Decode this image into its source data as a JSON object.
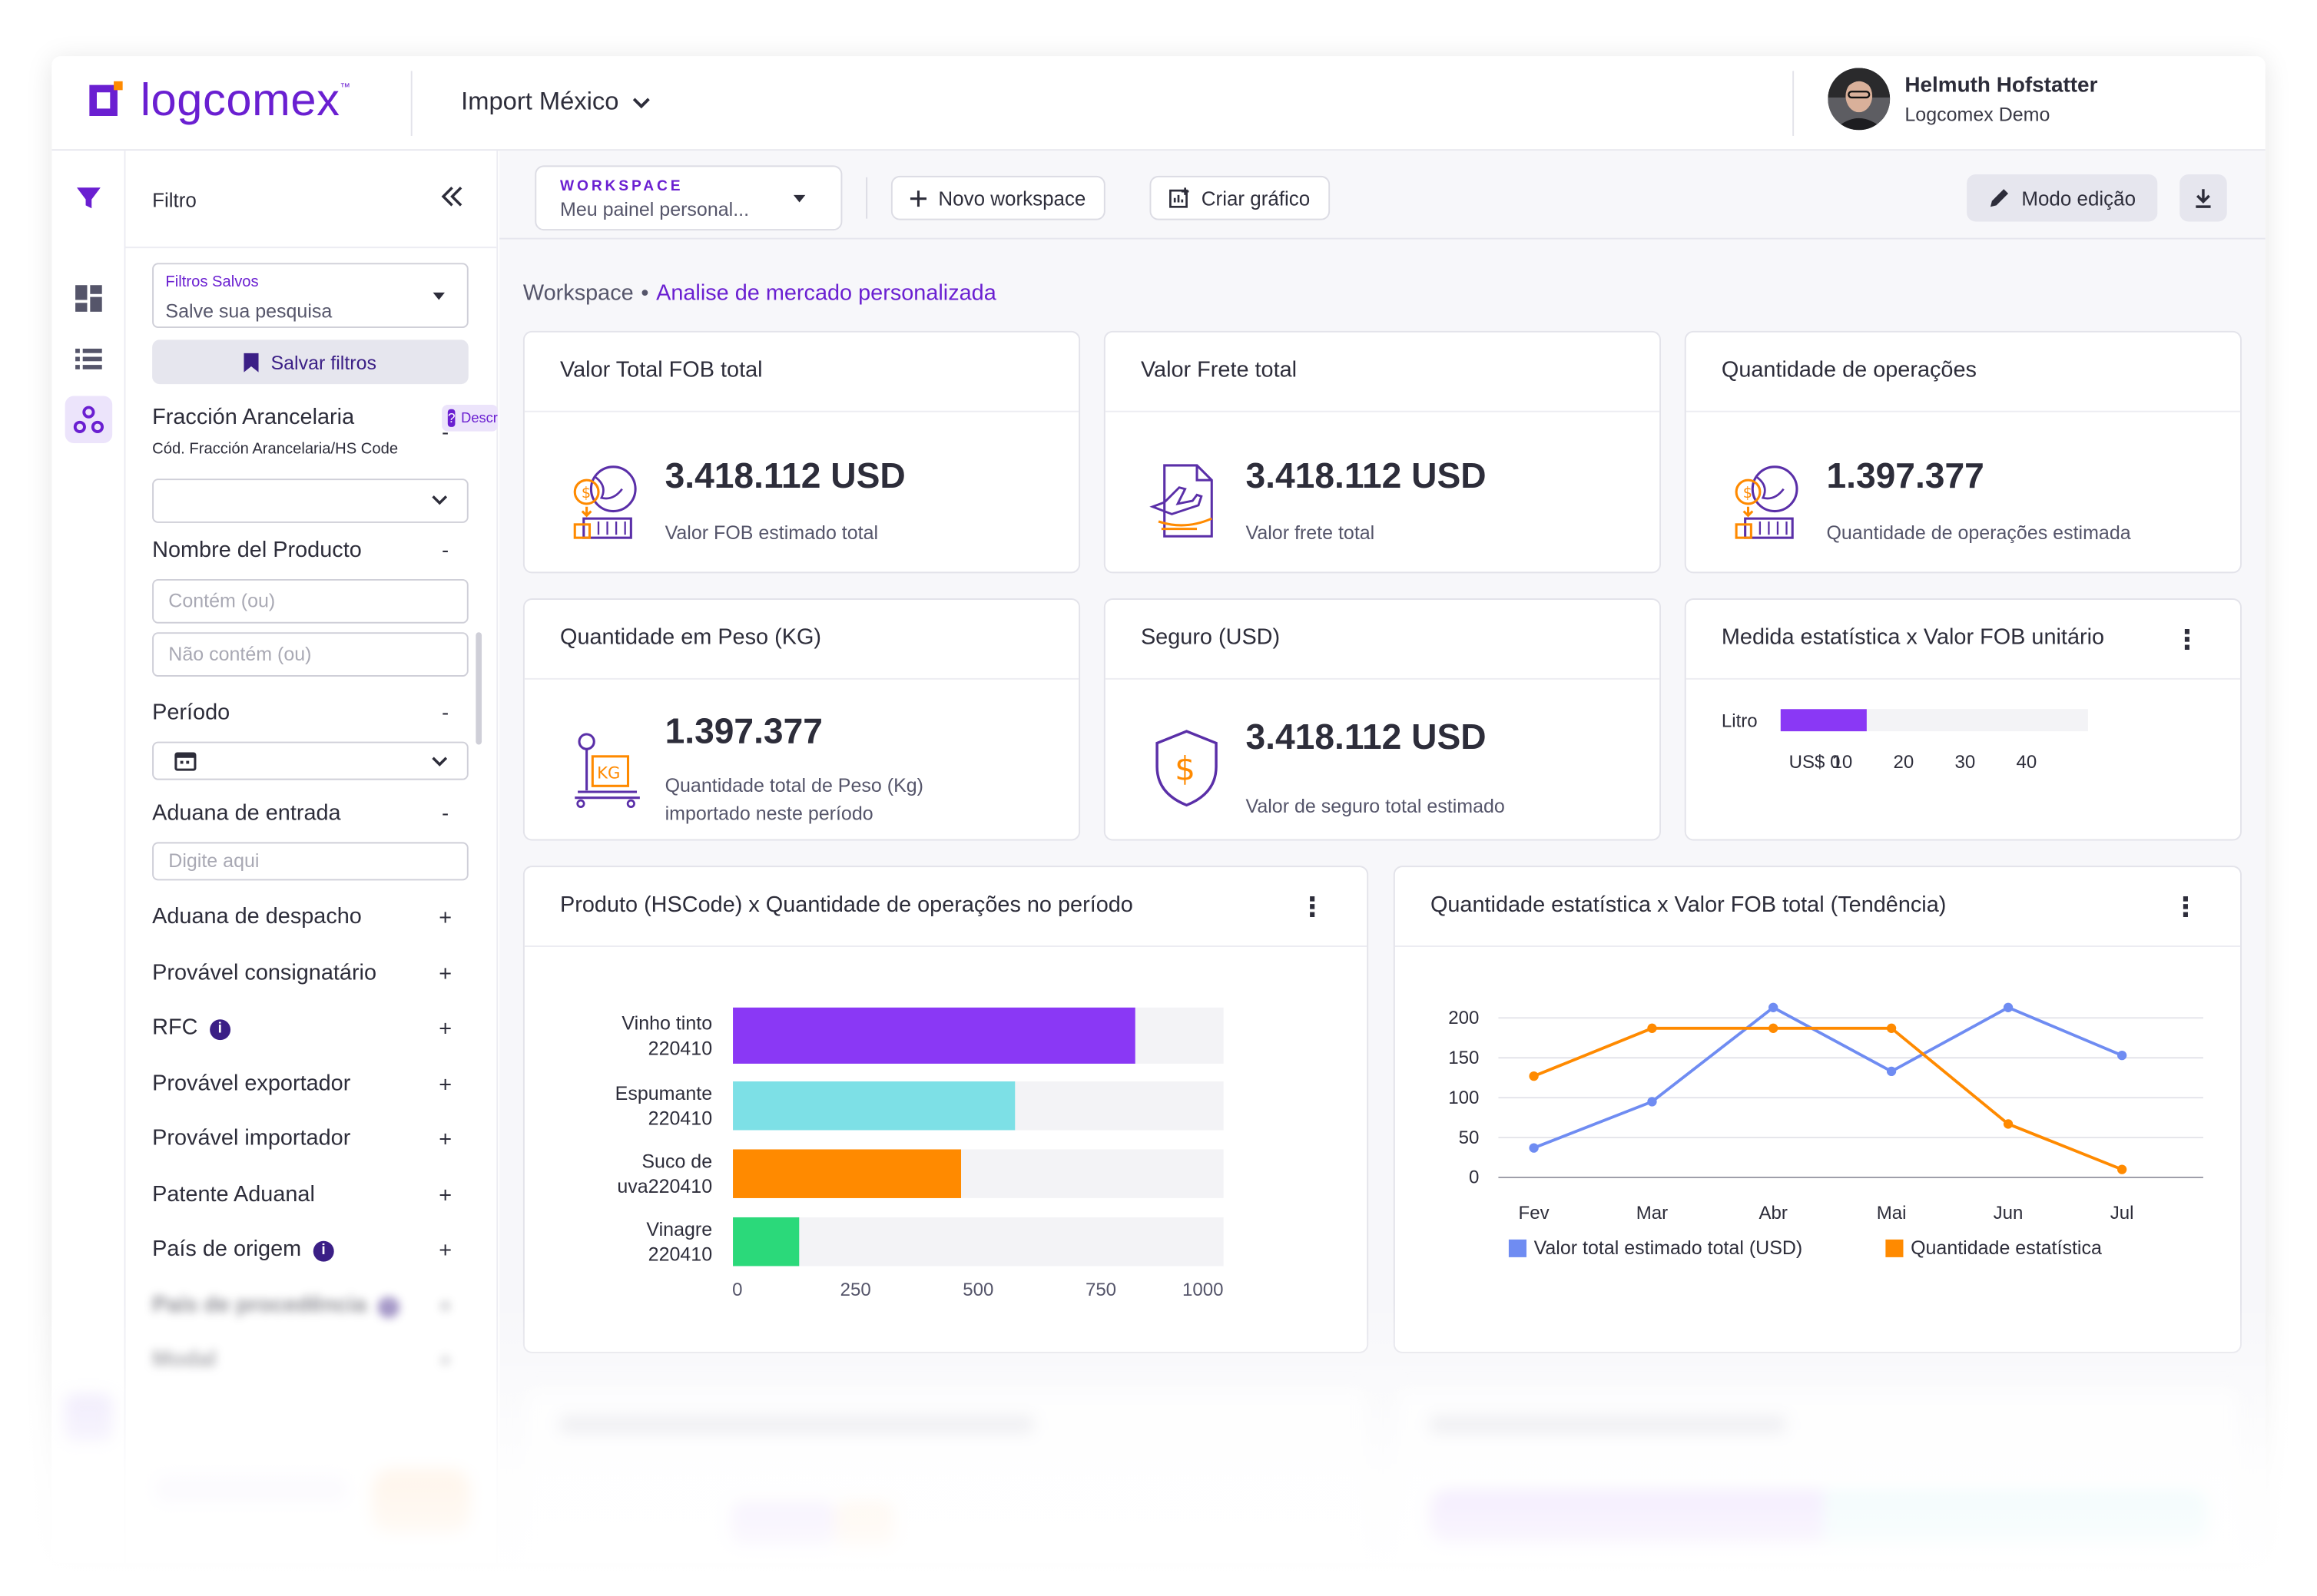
{
  "brand": {
    "name": "logcomex",
    "tm": "™",
    "accent": "#6a1fd1"
  },
  "context": {
    "label": "Import México"
  },
  "user": {
    "name": "Helmuth Hofstatter",
    "company": "Logcomex Demo"
  },
  "filters": {
    "title": "Filtro",
    "saved_label": "Filtros Salvos",
    "saved_placeholder": "Salve sua pesquisa",
    "save_button": "Salvar filtros",
    "fraccion_label": "Fracción Arancelaria",
    "fraccion_sub": "Cód. Fracción Arancelaria/HS Code",
    "fraccion_badge": "Descr",
    "nombre_label": "Nombre del Producto",
    "contem": "Contém (ou)",
    "nao_contem": "Não contém (ou)",
    "periodo_label": "Período",
    "aduana_entrada_label": "Aduana de entrada",
    "digite": "Digite aqui",
    "collapsed": [
      {
        "label": "Aduana de despacho",
        "info": false
      },
      {
        "label": "Provável consignatário",
        "info": false
      },
      {
        "label": "RFC",
        "info": true
      },
      {
        "label": "Provável exportador",
        "info": false
      },
      {
        "label": "Provável importador",
        "info": false
      },
      {
        "label": "Patente Aduanal",
        "info": false
      },
      {
        "label": "País de origem",
        "info": true
      },
      {
        "label": "País de procedência",
        "info": true
      },
      {
        "label": "Modal",
        "info": false
      }
    ],
    "minus": "-",
    "plus": "+"
  },
  "toolbar": {
    "workspace_label": "WORKSPACE",
    "workspace_value": "Meu painel personal...",
    "new_workspace": "Novo workspace",
    "create_chart": "Criar gráfico",
    "edit_mode": "Modo edição"
  },
  "breadcrumb": {
    "root": "Workspace",
    "sep": "•",
    "current": "Analise de mercado personalizada"
  },
  "kpis": [
    {
      "title": "Valor Total FOB total",
      "value": "3.418.112 USD",
      "sub": "Valor FOB estimado total",
      "icon": "globe-money-icon"
    },
    {
      "title": "Valor Frete total",
      "value": "3.418.112 USD",
      "sub": "Valor frete total",
      "icon": "freight-document-icon"
    },
    {
      "title": "Quantidade de operações",
      "value": "1.397.377",
      "sub": "Quantidade de operações estimada",
      "icon": "globe-money-icon"
    },
    {
      "title": "Quantidade em Peso (KG)",
      "value": "1.397.377",
      "sub": "Quantidade total de Peso (Kg)",
      "sub2": "importado neste período",
      "icon": "scale-kg-icon"
    },
    {
      "title": "Seguro (USD)",
      "value": "3.418.112 USD",
      "sub": "Valor de seguro total estimado",
      "icon": "shield-dollar-icon"
    }
  ],
  "chart_data": [
    {
      "type": "bar",
      "title": "Medida estatística x Valor FOB unitário",
      "categories": [
        "Litro"
      ],
      "values": [
        14
      ],
      "xlim": [
        0,
        50
      ],
      "xticks": [
        "US$ 0",
        "10",
        "20",
        "30",
        "40"
      ],
      "color": "#8a38f5"
    },
    {
      "type": "bar",
      "title": "Produto (HSCode) x Quantidade de operações no período",
      "categories": [
        [
          "Vinho tinto",
          "220410"
        ],
        [
          "Espumante",
          "220410"
        ],
        [
          "Suco de",
          "uva220410"
        ],
        [
          "Vinagre",
          "220410"
        ]
      ],
      "values": [
        820,
        575,
        465,
        135
      ],
      "colors": [
        "#8a38f5",
        "#7de0e6",
        "#ff8a00",
        "#2bd97a"
      ],
      "xlim": [
        0,
        1000
      ],
      "xticks": [
        "0",
        "250",
        "500",
        "750",
        "1000"
      ]
    },
    {
      "type": "line",
      "title": "Quantidade estatística x Valor FOB total (Tendência)",
      "x": [
        "Fev",
        "Mar",
        "Abr",
        "Mai",
        "Jun",
        "Jul"
      ],
      "ylim": [
        0,
        200
      ],
      "yticks": [
        "0",
        "50",
        "100",
        "150",
        "200"
      ],
      "series": [
        {
          "name": "Valor total estimado total (USD)",
          "color": "#6f8cf2",
          "values": [
            37,
            95,
            213,
            133,
            213,
            153
          ]
        },
        {
          "name": "Quantidade estatística",
          "color": "#ff8a00",
          "values": [
            127,
            187,
            187,
            187,
            67,
            10
          ]
        }
      ]
    }
  ]
}
